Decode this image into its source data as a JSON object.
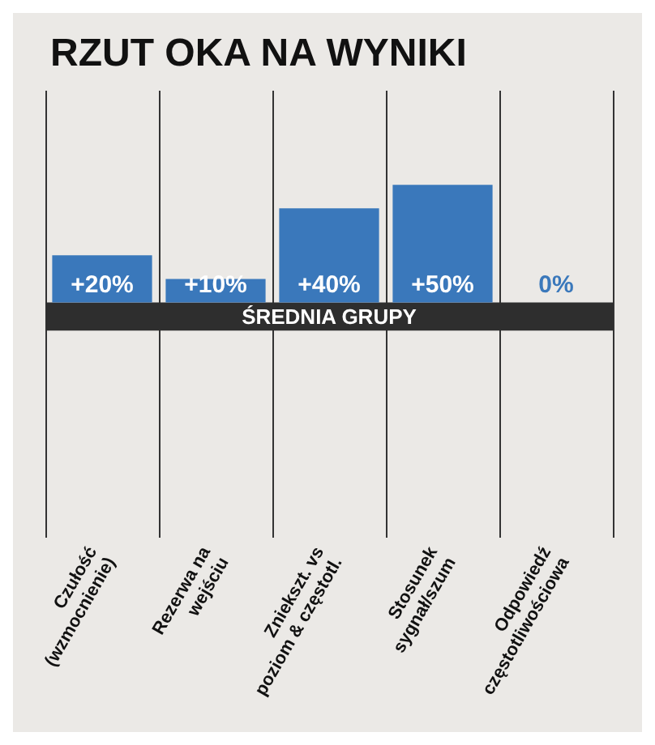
{
  "chart_data": {
    "type": "bar",
    "title": "RZUT OKA NA WYNIKI",
    "categories": [
      "Czułość\n(wzmocnienie)",
      "Rezerwa na\nwejściu",
      "Zniekszt. vs\npoziom & częstotl.",
      "Stosunek\nsygnał/szum",
      "Odpowiedź\nczęstotliwościowa"
    ],
    "values": [
      20,
      10,
      40,
      50,
      0
    ],
    "value_labels": [
      "+20%",
      "+10%",
      "+40%",
      "+50%",
      "0%"
    ],
    "color": "#3a78bb",
    "ylim": [
      -100,
      90
    ],
    "tick_labels": "x",
    "bands": [
      {
        "axis": "y",
        "from": -12,
        "to": 0,
        "label": "ŚREDNIA GRUPY",
        "color": "#2e2e2e"
      }
    ],
    "grid": "x"
  }
}
